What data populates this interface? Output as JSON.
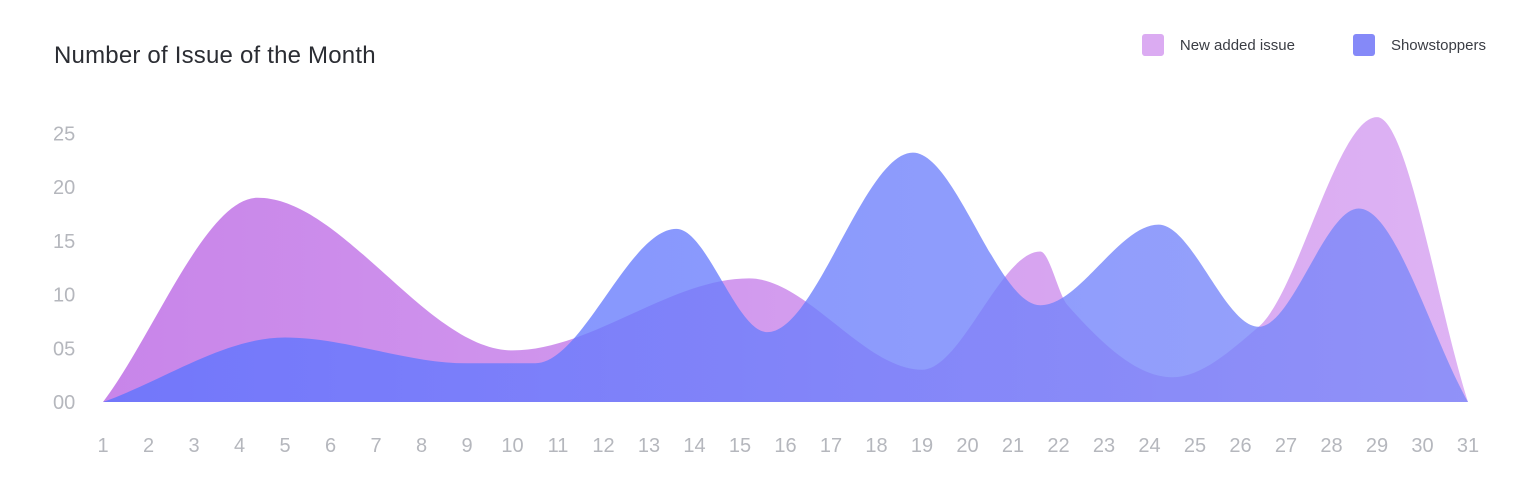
{
  "chart_data": {
    "type": "area",
    "title": "Number of Issue of the Month",
    "xlabel": "",
    "ylabel": "",
    "x": [
      1,
      2,
      3,
      4,
      5,
      6,
      7,
      8,
      9,
      10,
      11,
      12,
      13,
      14,
      15,
      16,
      17,
      18,
      19,
      20,
      21,
      22,
      23,
      24,
      25,
      26,
      27,
      28,
      29,
      30,
      31
    ],
    "y_tick_labels": [
      "00",
      "05",
      "10",
      "15",
      "20",
      "25"
    ],
    "y_ticks": [
      0,
      5,
      10,
      15,
      20,
      25
    ],
    "ylim": [
      0,
      26.5
    ],
    "grid": false,
    "legend_position": "top-right",
    "series": [
      {
        "name": "New added issue",
        "color": "#c77ee8",
        "points": [
          [
            1,
            0
          ],
          [
            4.4,
            19
          ],
          [
            10,
            4.8
          ],
          [
            15.2,
            11.5
          ],
          [
            19,
            3
          ],
          [
            21.6,
            14
          ],
          [
            22.2,
            9
          ],
          [
            24.5,
            2.3
          ],
          [
            26.4,
            7
          ],
          [
            29,
            26.5
          ],
          [
            31,
            0
          ]
        ]
      },
      {
        "name": "Showstoppers",
        "color": "#5c74fe",
        "points": [
          [
            1,
            0
          ],
          [
            5,
            6
          ],
          [
            9,
            3.6
          ],
          [
            10.5,
            3.6
          ],
          [
            13.6,
            16.1
          ],
          [
            15.6,
            6.5
          ],
          [
            18.8,
            23.2
          ],
          [
            21.6,
            9
          ],
          [
            24.2,
            16.5
          ],
          [
            26.4,
            7
          ],
          [
            28.6,
            18
          ],
          [
            31,
            0
          ]
        ]
      }
    ]
  }
}
